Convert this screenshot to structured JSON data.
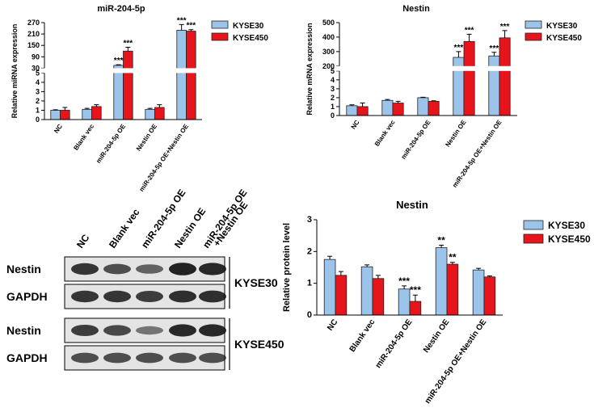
{
  "chart_data": [
    {
      "type": "bar",
      "title": "miR-204-5p",
      "ylabel": "Relative miRNA expression",
      "categories": [
        "NC",
        "Blank vec",
        "miR-204-5p OE",
        "Nestin OE",
        "miR-204-5p OE+Nestin OE"
      ],
      "ylim": [
        0,
        270
      ],
      "ybreak": [
        5,
        30
      ],
      "yticks": [
        0,
        1,
        2,
        3,
        4,
        5,
        30,
        90,
        150,
        210,
        270
      ],
      "series": [
        {
          "name": "KYSE30",
          "color": "#9cc3ea",
          "values": [
            1,
            1.1,
            45,
            1.1,
            230
          ],
          "errors": [
            0.05,
            0.1,
            3,
            0.1,
            30
          ],
          "annotations": [
            null,
            null,
            "***",
            null,
            "***"
          ]
        },
        {
          "name": "KYSE450",
          "color": "#e8141b",
          "values": [
            1,
            1.4,
            120,
            1.3,
            225
          ],
          "errors": [
            0.3,
            0.2,
            20,
            0.3,
            8
          ],
          "annotations": [
            null,
            null,
            "***",
            null,
            "***"
          ]
        }
      ]
    },
    {
      "type": "bar",
      "title": "Nestin",
      "ylabel": "Relative mRNA expression",
      "categories": [
        "NC",
        "Blank vec",
        "miR-204-5p OE",
        "Nestin OE",
        "miR-204-5p OE+Nestin OE"
      ],
      "ylim": [
        0,
        500
      ],
      "ybreak": [
        5,
        200
      ],
      "yticks": [
        0,
        1,
        2,
        3,
        4,
        5,
        200,
        300,
        400,
        500
      ],
      "series": [
        {
          "name": "KYSE30",
          "color": "#9cc3ea",
          "values": [
            1.1,
            1.7,
            2.0,
            260,
            270
          ],
          "errors": [
            0.1,
            0.1,
            0.05,
            40,
            25
          ],
          "annotations": [
            null,
            null,
            null,
            "***",
            "***"
          ]
        },
        {
          "name": "KYSE450",
          "color": "#e8141b",
          "values": [
            1.0,
            1.4,
            1.6,
            370,
            395
          ],
          "errors": [
            0.4,
            0.2,
            0.05,
            50,
            50
          ],
          "annotations": [
            null,
            null,
            null,
            "***",
            "***"
          ]
        }
      ]
    },
    {
      "type": "bar",
      "title": "Nestin",
      "ylabel": "Relative protein level",
      "categories": [
        "NC",
        "Blank vec",
        "miR-204-5p OE",
        "Nestin OE",
        "miR-204-5p OE+Nestin OE"
      ],
      "ylim": [
        0,
        3
      ],
      "yticks": [
        0,
        1,
        2,
        3
      ],
      "series": [
        {
          "name": "KYSE30",
          "color": "#9cc3ea",
          "values": [
            1.75,
            1.52,
            0.82,
            2.12,
            1.42
          ],
          "errors": [
            0.1,
            0.06,
            0.1,
            0.08,
            0.05
          ],
          "annotations": [
            null,
            null,
            "***",
            "**",
            null
          ]
        },
        {
          "name": "KYSE450",
          "color": "#e8141b",
          "values": [
            1.25,
            1.15,
            0.43,
            1.6,
            1.2
          ],
          "errors": [
            0.12,
            0.1,
            0.2,
            0.06,
            0.03
          ],
          "annotations": [
            null,
            null,
            "***",
            "**",
            null
          ]
        }
      ]
    }
  ],
  "blot": {
    "lanes": [
      "NC",
      "Blank vec",
      "miR-204-5p OE",
      "Nestin OE",
      [
        "miR-204-5p OE",
        "+Nestin OE"
      ]
    ],
    "rows": [
      "Nestin",
      "GAPDH",
      "Nestin",
      "GAPDH"
    ],
    "groups": [
      "KYSE30",
      "KYSE450"
    ]
  }
}
